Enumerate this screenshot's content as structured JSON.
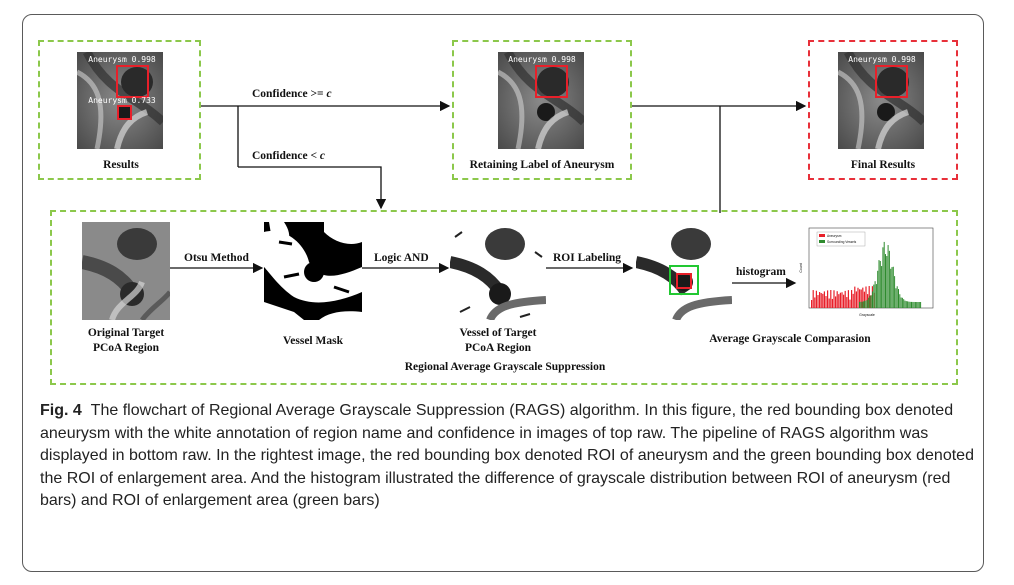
{
  "figure": {
    "top_row": {
      "results": {
        "label": "Results",
        "annotations": [
          "Aneurysm 0.998",
          "Aneurysm 0.733"
        ]
      },
      "retain": {
        "label": "Retaining Label of Aneurysm",
        "annotation": "Aneurysm 0.998"
      },
      "final": {
        "label": "Final Results",
        "annotation": "Aneurysm 0.998"
      }
    },
    "edges": {
      "conf_ge_prefix": "Confidence >= ",
      "conf_ge_var": "c",
      "conf_lt_prefix": "Confidence < ",
      "conf_lt_var": "c",
      "otsu": "Otsu Method",
      "logic_and": "Logic AND",
      "roi_labeling": "ROI Labeling",
      "histogram": "histogram"
    },
    "bottom_row": {
      "original_line1": "Original Target",
      "original_line2": "PCoA Region",
      "vessel_mask": "Vessel Mask",
      "vessel_target_line1": "Vessel of Target",
      "vessel_target_line2": "PCoA Region",
      "avg_comparison": "Average Grayscale Comparasion",
      "section_title": "Regional Average Grayscale Suppression"
    },
    "histogram_chart": {
      "legend": [
        "Aneurysm",
        "Surrounding Vessels"
      ],
      "xlabel": "Grayscale",
      "ylabel": "Count",
      "colors": {
        "aneurysm": "#e8202a",
        "surrounding": "#2e8b2e"
      }
    },
    "colors": {
      "dashed_green": "#8cc84b",
      "dashed_red": "#e8303a",
      "bbox_red": "#e8202a",
      "bbox_green": "#22c832"
    }
  },
  "caption": {
    "fig_label": "Fig. 4",
    "text": "The flowchart of Regional Average Grayscale Suppression (RAGS) algorithm. In this figure, the red bounding box denoted aneurysm with the white annotation of region name and confidence in images of top raw. The pipeline of RAGS algorithm was displayed in bottom raw. In the rightest image, the red bounding box denoted ROI of aneurysm and the green bounding box denoted the ROI of enlargement area. And the histogram illustrated the difference of grayscale distribution between ROI of aneurysm (red bars) and ROI of enlargement area (green bars)"
  }
}
